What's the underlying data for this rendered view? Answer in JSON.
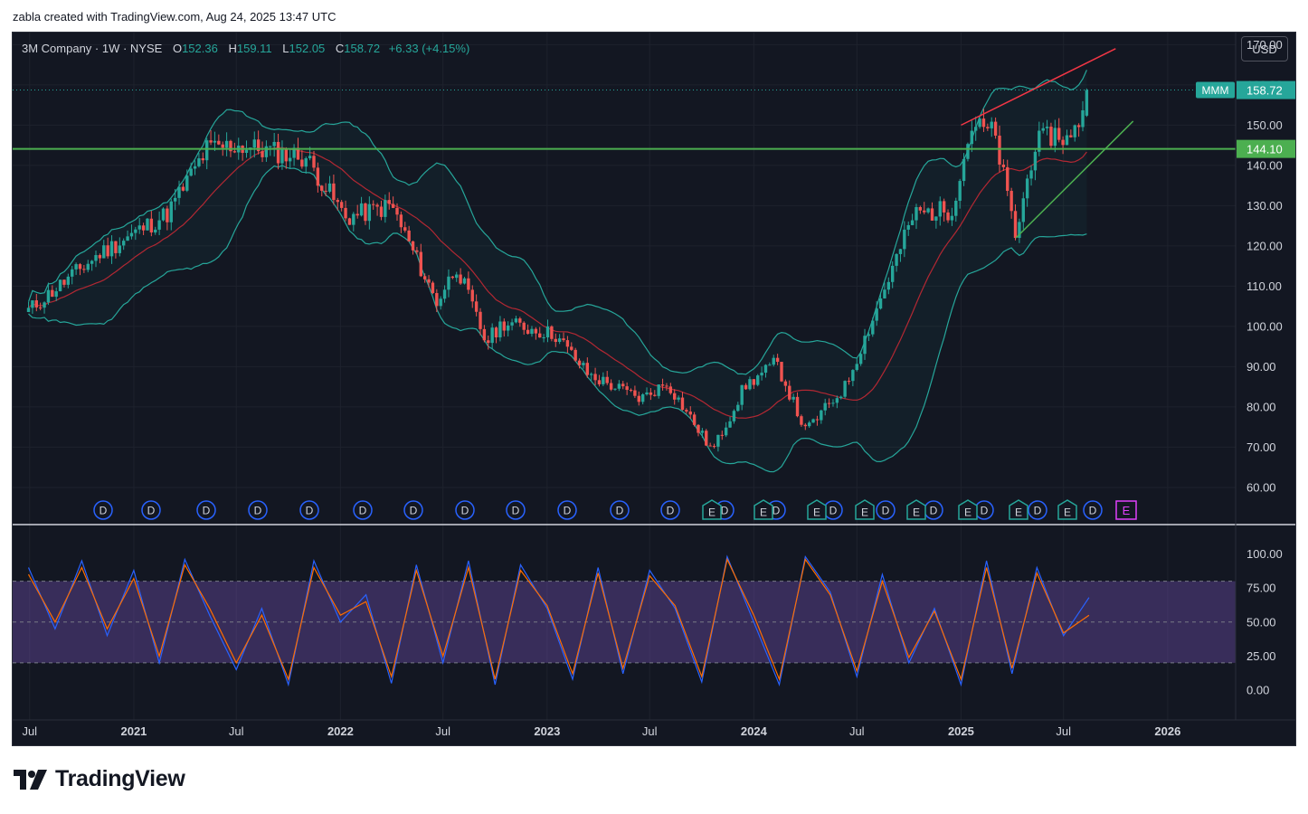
{
  "header": {
    "caption": "zabla created with TradingView.com, Aug 24, 2025 13:47 UTC"
  },
  "legend": {
    "symbol": "3M Company · 1W · NYSE",
    "open_label": "O",
    "open": "152.36",
    "high_label": "H",
    "high": "159.11",
    "low_label": "L",
    "low": "152.05",
    "close_label": "C",
    "close": "158.72",
    "change": "+6.33 (+4.15%)"
  },
  "currency": "USD",
  "price_tags": {
    "ticker": "MMM",
    "last": "158.72",
    "support": "144.10"
  },
  "colors": {
    "background": "#131722",
    "up": "#26a69a",
    "down": "#ef5350",
    "bb_band": "#26a69a",
    "bb_basis": "#b22833",
    "support_line": "#4caf50",
    "trend_upper": "#f23645",
    "trend_lower": "#4caf50",
    "stoch_k": "#2962ff",
    "stoch_d": "#ff6d00",
    "stoch_band": "#7e57c2",
    "dividend_marker": "#2962ff",
    "earnings_marker": "#26a69a",
    "future_earnings": "#e040fb"
  },
  "events": {
    "dividend_label": "D",
    "earnings_label": "E"
  },
  "brand": {
    "name": "TradingView"
  },
  "chart_data": [
    {
      "type": "candlestick",
      "timeframe": "1W",
      "x_axis_labels": [
        "Jul",
        "2021",
        "Jul",
        "2022",
        "Jul",
        "2023",
        "Jul",
        "2024",
        "Jul",
        "2025",
        "Jul",
        "2026"
      ],
      "y_ticks": [
        "170.00",
        "160.00",
        "150.00",
        "140.00",
        "130.00",
        "120.00",
        "110.00",
        "100.00",
        "90.00",
        "80.00",
        "70.00",
        "60.00"
      ],
      "ylim": [
        51,
        173
      ],
      "x": [
        "2020-06-29",
        "2020-11-01",
        "2021-03-01",
        "2021-05-10",
        "2021-07-01",
        "2021-11-01",
        "2022-01-10",
        "2022-04-01",
        "2022-06-20",
        "2022-07-25",
        "2022-09-15",
        "2022-10-15",
        "2023-01-15",
        "2023-03-15",
        "2023-06-15",
        "2023-08-01",
        "2023-10-20",
        "2023-12-15",
        "2024-02-10",
        "2024-04-01",
        "2024-06-10",
        "2024-08-01",
        "2024-10-10",
        "2024-12-15",
        "2025-01-20",
        "2025-03-01",
        "2025-04-08",
        "2025-05-10",
        "2025-06-15",
        "2025-07-15",
        "2025-08-15"
      ],
      "series": [
        {
          "name": "MMM",
          "values": [
            104,
            118,
            128,
            144,
            145,
            142,
            127,
            130,
            106,
            115,
            96,
            101,
            98,
            88,
            82,
            86,
            69,
            85,
            91,
            74,
            85,
            103,
            128,
            129,
            150,
            148,
            122,
            145,
            148,
            146,
            158.7
          ]
        }
      ],
      "horizontal_levels": [
        144.1
      ],
      "trendlines": [
        {
          "from": [
            "2025-01-01",
            150
          ],
          "to": [
            "2025-10-01",
            169
          ]
        },
        {
          "from": [
            "2025-04-08",
            122
          ],
          "to": [
            "2025-11-01",
            151
          ]
        }
      ],
      "indicators": [
        "Bollinger Bands",
        "Dividends",
        "Earnings"
      ]
    },
    {
      "type": "line",
      "name": "Stochastic",
      "y_ticks": [
        "100.00",
        "75.00",
        "50.00",
        "25.00",
        "0.00"
      ],
      "ylim": [
        0,
        100
      ],
      "bands": [
        20,
        50,
        80
      ],
      "x": [
        "2020-06-29",
        "2020-08-15",
        "2020-10-01",
        "2020-11-15",
        "2021-01-01",
        "2021-02-15",
        "2021-04-01",
        "2021-05-15",
        "2021-07-01",
        "2021-08-15",
        "2021-10-01",
        "2021-11-15",
        "2022-01-01",
        "2022-02-15",
        "2022-04-01",
        "2022-05-15",
        "2022-07-01",
        "2022-08-15",
        "2022-10-01",
        "2022-11-15",
        "2023-01-01",
        "2023-02-15",
        "2023-04-01",
        "2023-05-15",
        "2023-07-01",
        "2023-08-15",
        "2023-10-01",
        "2023-11-15",
        "2024-01-01",
        "2024-02-15",
        "2024-04-01",
        "2024-05-15",
        "2024-07-01",
        "2024-08-15",
        "2024-10-01",
        "2024-11-15",
        "2025-01-01",
        "2025-02-15",
        "2025-04-01",
        "2025-05-15",
        "2025-07-01",
        "2025-08-15"
      ],
      "series": [
        {
          "name": "%K",
          "values": [
            90,
            45,
            95,
            40,
            88,
            20,
            96,
            55,
            15,
            60,
            4,
            95,
            50,
            70,
            5,
            92,
            20,
            95,
            4,
            92,
            60,
            8,
            90,
            12,
            88,
            60,
            6,
            98,
            50,
            4,
            98,
            72,
            10,
            85,
            20,
            60,
            4,
            95,
            12,
            90,
            40,
            68
          ]
        },
        {
          "name": "%D",
          "values": [
            85,
            50,
            90,
            45,
            82,
            25,
            92,
            60,
            20,
            55,
            8,
            90,
            55,
            65,
            10,
            88,
            25,
            90,
            8,
            88,
            62,
            12,
            86,
            16,
            84,
            62,
            10,
            96,
            55,
            8,
            96,
            70,
            14,
            80,
            24,
            58,
            8,
            90,
            16,
            86,
            42,
            55
          ]
        }
      ]
    }
  ]
}
